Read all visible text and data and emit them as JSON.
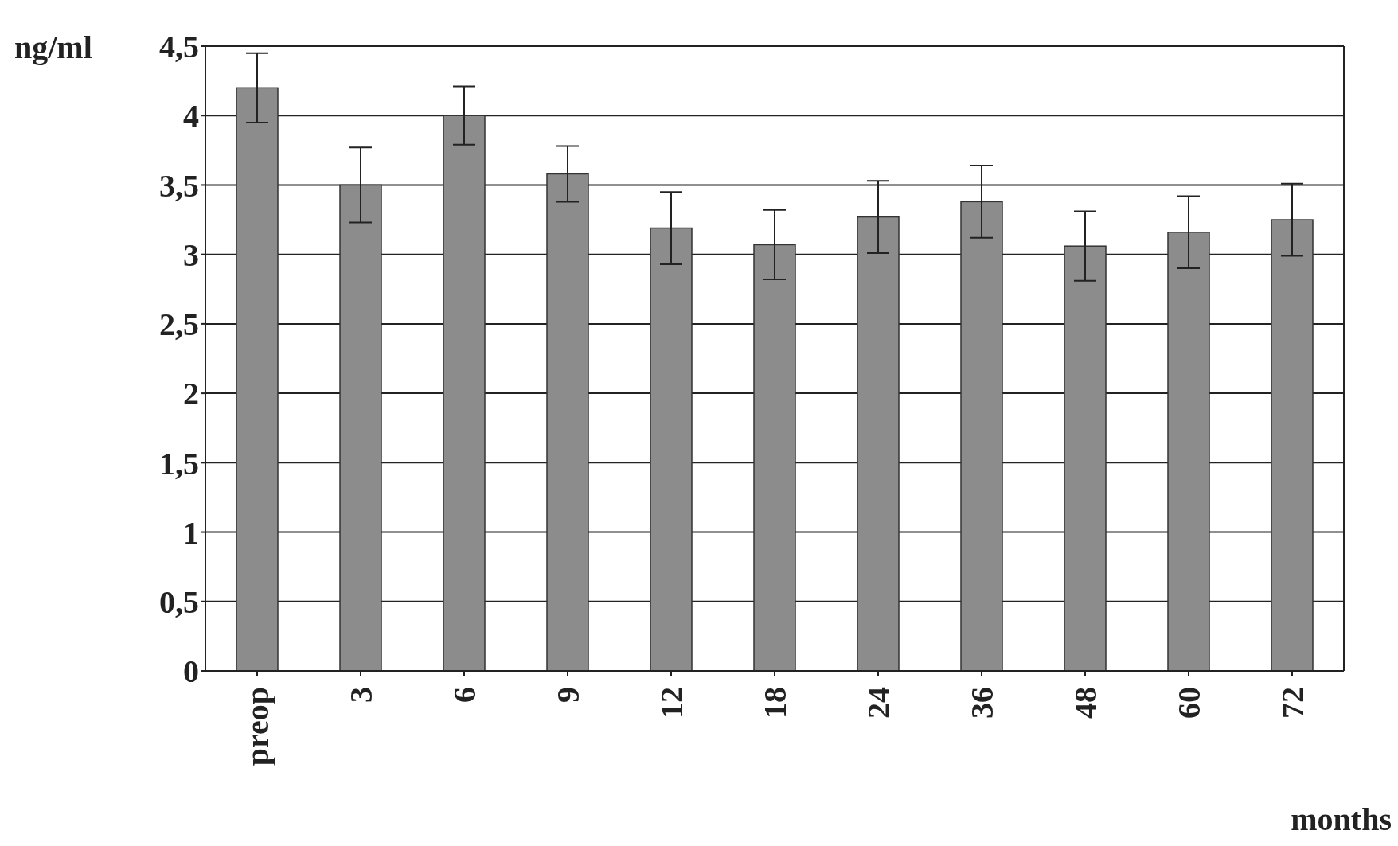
{
  "chart_data": {
    "type": "bar",
    "xlabel": "months",
    "ylabel": "ng/ml",
    "categories": [
      "preop",
      "3",
      "6",
      "9",
      "12",
      "18",
      "24",
      "36",
      "48",
      "60",
      "72"
    ],
    "values": [
      4.2,
      3.5,
      4.0,
      3.58,
      3.19,
      3.07,
      3.27,
      3.38,
      3.06,
      3.16,
      3.25
    ],
    "errors": [
      0.25,
      0.27,
      0.21,
      0.2,
      0.26,
      0.25,
      0.26,
      0.26,
      0.25,
      0.26,
      0.26
    ],
    "color": "#8c8c8c",
    "ylim": [
      0,
      4.5
    ],
    "yticks": [
      0,
      {
        "value": 0.5,
        "label": "0,5"
      },
      1,
      {
        "value": 1.5,
        "label": "1,5"
      },
      2,
      {
        "value": 2.5,
        "label": "2,5"
      },
      3,
      {
        "value": 3.5,
        "label": "3,5"
      },
      4,
      {
        "value": 4.5,
        "label": "4,5"
      }
    ],
    "grid": "y"
  }
}
